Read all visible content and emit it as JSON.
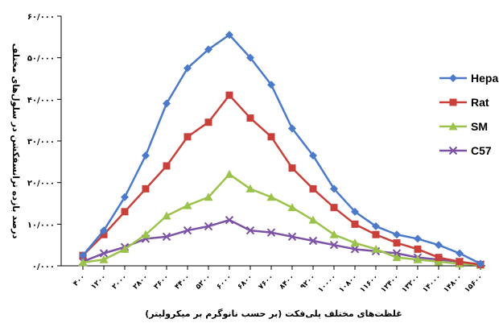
{
  "chart_data": {
    "type": "line",
    "xlabel": "غلظت‌های مختلف پلی‌فکت (بر حسب نانوگرم بر میکرولیتر)",
    "ylabel": "درصد بازده ترانسفکشن در سلول‌های مختلف",
    "x_tick_labels": [
      "۴۰۰",
      "۱۲۰۰",
      "۲۰۰۰",
      "۲۸۰۰",
      "۳۶۰۰",
      "۴۴۰۰",
      "۵۲۰۰",
      "۶۰۰۰",
      "۶۸۰۰",
      "۷۶۰۰",
      "۸۴۰۰",
      "۹۲۰۰",
      "۱۰۰۰۰",
      "۱۰۸۰۰",
      "۱۱۶۰۰",
      "۱۲۴۰۰",
      "۱۳۲۰۰",
      "۱۴۰۰۰",
      "۱۴۸۰۰",
      "۱۵۶۰۰"
    ],
    "y_tick_labels": [
      "۰/۰۰۰",
      "۱۰/۰۰۰",
      "۲۰/۰۰۰",
      "۳۰/۰۰۰",
      "۴۰/۰۰۰",
      "۵۰/۰۰۰",
      "۶۰/۰۰۰"
    ],
    "ylim": [
      0,
      60
    ],
    "legend_position": "right",
    "series": [
      {
        "name": "Hepa",
        "color": "#4a7ac9",
        "marker": "diamond",
        "values": [
          2.5,
          8.5,
          16.5,
          26.5,
          39,
          47.5,
          52,
          55.5,
          50,
          43.5,
          33,
          26.5,
          18.5,
          13,
          9.5,
          7.5,
          6.5,
          5,
          3,
          0.5
        ]
      },
      {
        "name": "Rat",
        "color": "#c9403a",
        "marker": "square",
        "values": [
          2.5,
          7.5,
          13,
          18.5,
          24,
          31,
          34.5,
          41,
          35.5,
          31,
          23.5,
          18.5,
          14,
          10,
          7.5,
          5.5,
          4,
          2,
          1,
          0.3
        ]
      },
      {
        "name": "SM",
        "color": "#9bc24a",
        "marker": "triangle",
        "values": [
          0.8,
          1.5,
          4,
          7.5,
          12,
          14.5,
          16.5,
          22,
          18.5,
          16.5,
          14,
          11,
          7.5,
          5.5,
          4,
          2,
          1.5,
          1,
          0.5,
          0.2
        ]
      },
      {
        "name": "C57",
        "color": "#7b52a6",
        "marker": "x",
        "values": [
          1,
          3,
          4.5,
          6.5,
          7,
          8.5,
          9.5,
          11,
          8.5,
          8,
          7,
          6,
          5,
          4,
          3.5,
          3,
          2,
          1.5,
          1,
          0.3
        ]
      }
    ]
  }
}
